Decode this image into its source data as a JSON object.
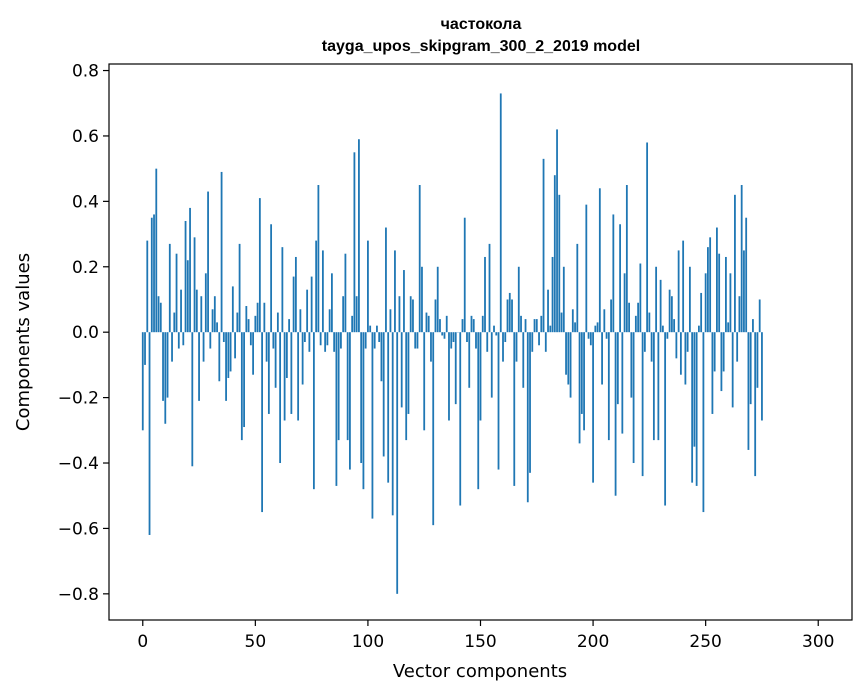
{
  "chart_data": {
    "type": "bar",
    "title": "частокола",
    "subtitle": "tayga_upos_skipgram_300_2_2019 model",
    "xlabel": "Vector components",
    "ylabel": "Components values",
    "xlim": [
      -15,
      315
    ],
    "ylim": [
      -0.88,
      0.82
    ],
    "xticks": [
      0,
      50,
      100,
      150,
      200,
      250,
      300
    ],
    "yticks": [
      -0.8,
      -0.6,
      -0.4,
      -0.2,
      0.0,
      0.2,
      0.4,
      0.6,
      0.8
    ],
    "xtick_labels": [
      "0",
      "50",
      "100",
      "150",
      "200",
      "250",
      "300"
    ],
    "ytick_labels": [
      "−0.8",
      "−0.6",
      "−0.4",
      "−0.2",
      "0.0",
      "0.2",
      "0.4",
      "0.6",
      "0.8"
    ],
    "grid": false,
    "legend": "none",
    "color": "#1f77b4",
    "values": [
      -0.3,
      -0.1,
      0.28,
      -0.62,
      0.35,
      0.36,
      0.5,
      0.11,
      0.09,
      -0.21,
      -0.28,
      -0.2,
      0.27,
      -0.09,
      0.06,
      0.24,
      -0.05,
      0.13,
      -0.04,
      0.34,
      0.22,
      0.38,
      -0.41,
      0.29,
      0.13,
      -0.21,
      0.11,
      -0.09,
      0.18,
      0.43,
      -0.05,
      0.07,
      0.11,
      0.03,
      -0.15,
      0.49,
      -0.03,
      -0.21,
      -0.14,
      -0.12,
      0.14,
      -0.08,
      0.06,
      0.27,
      -0.33,
      -0.29,
      0.08,
      0.04,
      -0.04,
      -0.13,
      0.05,
      0.09,
      0.41,
      -0.55,
      0.09,
      -0.09,
      -0.25,
      0.33,
      -0.05,
      -0.17,
      0.06,
      -0.4,
      0.26,
      -0.27,
      -0.14,
      0.04,
      -0.25,
      0.17,
      0.23,
      -0.27,
      0.07,
      -0.16,
      -0.03,
      0.13,
      -0.06,
      0.17,
      -0.48,
      0.28,
      0.45,
      -0.04,
      0.25,
      -0.06,
      -0.04,
      0.07,
      0.18,
      -0.06,
      -0.47,
      -0.33,
      -0.05,
      0.11,
      0.24,
      -0.33,
      -0.42,
      0.05,
      0.55,
      0.11,
      0.59,
      -0.4,
      -0.48,
      -0.05,
      0.28,
      0.02,
      -0.57,
      -0.05,
      0.02,
      -0.03,
      -0.15,
      -0.38,
      0.32,
      -0.46,
      0.07,
      -0.56,
      0.25,
      -0.8,
      0.11,
      -0.23,
      0.19,
      -0.33,
      -0.25,
      0.11,
      0.1,
      -0.05,
      -0.05,
      0.45,
      0.2,
      -0.3,
      0.06,
      0.05,
      -0.09,
      -0.59,
      0.1,
      0.2,
      0.04,
      -0.01,
      -0.02,
      0.05,
      -0.27,
      -0.05,
      -0.03,
      -0.22,
      0.0,
      -0.53,
      0.04,
      0.35,
      -0.03,
      -0.17,
      0.05,
      0.04,
      -0.05,
      -0.48,
      -0.27,
      0.05,
      0.23,
      -0.06,
      0.27,
      -0.2,
      0.02,
      -0.01,
      -0.42,
      0.73,
      -0.09,
      -0.03,
      0.1,
      0.12,
      0.1,
      -0.47,
      -0.09,
      0.2,
      0.05,
      -0.17,
      0.04,
      -0.52,
      -0.43,
      -0.06,
      0.04,
      0.04,
      -0.04,
      0.05,
      0.53,
      -0.06,
      0.13,
      0.02,
      0.23,
      0.48,
      0.62,
      0.42,
      0.06,
      0.2,
      -0.13,
      -0.16,
      -0.2,
      0.07,
      0.03,
      0.27,
      -0.34,
      -0.25,
      -0.3,
      0.39,
      -0.02,
      -0.04,
      -0.46,
      0.02,
      0.03,
      0.44,
      -0.16,
      0.07,
      -0.02,
      -0.33,
      0.1,
      0.36,
      -0.5,
      -0.22,
      0.33,
      -0.31,
      0.18,
      0.45,
      0.09,
      -0.2,
      -0.4,
      0.05,
      0.09,
      0.21,
      -0.44,
      -0.06,
      0.58,
      0.06,
      -0.09,
      -0.33,
      0.2,
      -0.33,
      0.16,
      0.02,
      -0.53,
      -0.02,
      0.13,
      0.11,
      0.04,
      -0.08,
      0.25,
      -0.13,
      0.28,
      -0.16,
      -0.06,
      0.2,
      -0.46,
      -0.35,
      -0.47,
      0.02,
      0.12,
      -0.55,
      0.18,
      0.26,
      0.29,
      -0.25,
      -0.12,
      0.32,
      0.24,
      -0.18,
      -0.12,
      0.23,
      0.03,
      0.18,
      -0.23,
      0.42,
      -0.09,
      0.11,
      0.45,
      0.25,
      0.35,
      -0.36,
      -0.22,
      0.04,
      -0.44,
      -0.17,
      0.1,
      -0.27
    ]
  }
}
